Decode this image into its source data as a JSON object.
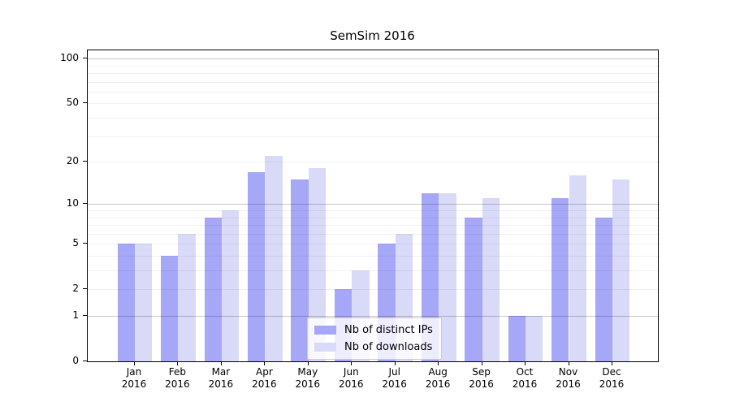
{
  "chart_data": {
    "type": "bar",
    "title": "SemSim 2016",
    "categories": [
      "Jan",
      "Feb",
      "Mar",
      "Apr",
      "May",
      "Jun",
      "Jul",
      "Aug",
      "Sep",
      "Oct",
      "Nov",
      "Dec"
    ],
    "category_year": "2016",
    "series": [
      {
        "name": "Nb of distinct IPs",
        "color": "#a7a7f7",
        "values": [
          5,
          4,
          8,
          17,
          15,
          2,
          5,
          12,
          8,
          1,
          11,
          8
        ]
      },
      {
        "name": "Nb of downloads",
        "color": "#d9d9f8",
        "values": [
          5,
          6,
          9,
          22,
          18,
          3,
          6,
          12,
          11,
          1,
          16,
          15
        ]
      }
    ],
    "yscale": "log1p",
    "ytick_labels": [
      0,
      1,
      2,
      5,
      10,
      20,
      50,
      100
    ],
    "major_gridlines": [
      1,
      10,
      100
    ],
    "minor_gridlines": [
      2,
      3,
      4,
      5,
      6,
      7,
      8,
      9,
      20,
      30,
      40,
      50,
      60,
      70,
      80,
      90
    ],
    "ylim": [
      0,
      113
    ],
    "grid": true,
    "legend_position": "lower center",
    "background": "#ffffff",
    "axis_color": "#000000"
  }
}
